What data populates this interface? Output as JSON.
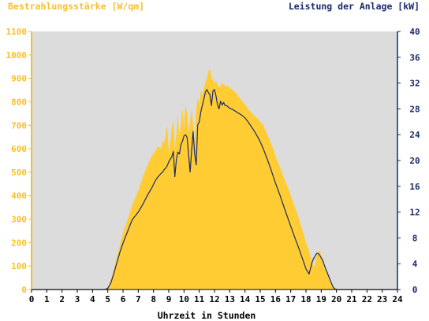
{
  "chart_data": {
    "type": "area",
    "left_axis_title": "Bestrahlungsstärke [W/qm]",
    "right_axis_title": "Leistung der Anlage [kW]",
    "xlabel": "Uhrzeit in Stunden",
    "x_ticks": [
      "0",
      "1",
      "2",
      "3",
      "4",
      "5",
      "6",
      "7",
      "8",
      "9",
      "10",
      "11",
      "12",
      "13",
      "14",
      "15",
      "16",
      "17",
      "18",
      "19",
      "20",
      "21",
      "22",
      "23",
      "24"
    ],
    "y_left_ticks": [
      "0",
      "100",
      "200",
      "300",
      "400",
      "500",
      "600",
      "700",
      "800",
      "900",
      "1000",
      "1100"
    ],
    "y_right_ticks": [
      "0",
      "4",
      "8",
      "12",
      "16",
      "20",
      "24",
      "28",
      "32",
      "36",
      "40"
    ],
    "xlim": [
      0,
      24
    ],
    "ylim_left": [
      0,
      1100
    ],
    "ylim_right": [
      0,
      40
    ],
    "grid": false,
    "colors": {
      "plot_background": "#dcdcdc",
      "irradiance_fill": "#ffcc33",
      "power_line": "#1a2a6c",
      "left_axis": "#f5c030",
      "right_axis": "#1a2a6c",
      "axis_labels": "#000000"
    },
    "series": [
      {
        "name": "Bestrahlungsstärke [W/qm]",
        "axis": "left",
        "style": "area",
        "x": [
          0,
          4.8,
          5.0,
          5.2,
          5.4,
          5.6,
          5.8,
          6.0,
          6.3,
          6.6,
          7.0,
          7.3,
          7.6,
          7.9,
          8.1,
          8.3,
          8.5,
          8.6,
          8.7,
          8.8,
          8.9,
          9.0,
          9.1,
          9.2,
          9.3,
          9.4,
          9.5,
          9.6,
          9.7,
          9.8,
          9.9,
          10.0,
          10.1,
          10.2,
          10.3,
          10.4,
          10.5,
          10.6,
          10.7,
          10.8,
          10.9,
          11.0,
          11.1,
          11.2,
          11.3,
          11.4,
          11.5,
          11.6,
          11.7,
          11.8,
          11.9,
          12.0,
          12.1,
          12.2,
          12.3,
          12.4,
          12.5,
          12.6,
          12.7,
          12.8,
          12.9,
          13.0,
          13.2,
          13.4,
          13.6,
          13.8,
          14.0,
          14.2,
          14.4,
          14.6,
          14.8,
          15.0,
          15.2,
          15.4,
          15.6,
          15.8,
          16.0,
          16.3,
          16.6,
          16.9,
          17.2,
          17.5,
          17.8,
          18.0,
          18.2,
          18.4,
          18.5,
          18.6,
          18.7,
          18.8,
          18.9,
          19.0,
          19.1,
          19.2,
          19.3,
          19.4,
          19.5,
          19.6,
          19.7,
          19.8,
          19.9,
          20.0,
          20.2,
          24
        ],
        "values": [
          0,
          0,
          10,
          40,
          90,
          140,
          190,
          240,
          300,
          360,
          420,
          480,
          530,
          570,
          590,
          610,
          600,
          640,
          620,
          660,
          700,
          580,
          630,
          690,
          720,
          600,
          660,
          750,
          650,
          700,
          770,
          690,
          790,
          750,
          670,
          720,
          770,
          700,
          620,
          760,
          820,
          790,
          850,
          830,
          860,
          880,
          900,
          930,
          940,
          910,
          890,
          880,
          890,
          870,
          860,
          870,
          880,
          875,
          870,
          865,
          870,
          860,
          850,
          840,
          820,
          805,
          790,
          770,
          755,
          740,
          730,
          715,
          700,
          670,
          640,
          610,
          570,
          520,
          470,
          420,
          365,
          310,
          245,
          200,
          165,
          120,
          95,
          110,
          150,
          165,
          160,
          150,
          130,
          110,
          90,
          70,
          50,
          30,
          20,
          10,
          5,
          2,
          0,
          0
        ]
      },
      {
        "name": "Leistung der Anlage [kW]",
        "axis": "right",
        "style": "line",
        "x": [
          0,
          4.8,
          5.0,
          5.2,
          5.4,
          5.6,
          5.8,
          6.0,
          6.3,
          6.6,
          7.0,
          7.3,
          7.6,
          7.9,
          8.1,
          8.3,
          8.5,
          8.6,
          8.7,
          8.8,
          8.9,
          9.0,
          9.1,
          9.2,
          9.3,
          9.4,
          9.5,
          9.6,
          9.7,
          9.8,
          9.9,
          10.0,
          10.1,
          10.2,
          10.3,
          10.4,
          10.5,
          10.6,
          10.7,
          10.8,
          10.9,
          11.0,
          11.1,
          11.2,
          11.3,
          11.4,
          11.5,
          11.6,
          11.7,
          11.8,
          11.9,
          12.0,
          12.1,
          12.2,
          12.3,
          12.4,
          12.5,
          12.6,
          12.7,
          12.8,
          12.9,
          13.0,
          13.2,
          13.4,
          13.6,
          13.8,
          14.0,
          14.2,
          14.4,
          14.6,
          14.8,
          15.0,
          15.2,
          15.4,
          15.6,
          15.8,
          16.0,
          16.3,
          16.6,
          16.9,
          17.2,
          17.5,
          17.8,
          18.0,
          18.2,
          18.4,
          18.5,
          18.6,
          18.7,
          18.8,
          18.9,
          19.0,
          19.1,
          19.2,
          19.3,
          19.4,
          19.5,
          19.6,
          19.7,
          19.8,
          19.9,
          20.0,
          20.2,
          24
        ],
        "values": [
          0,
          0,
          0.2,
          1.0,
          2.5,
          4.2,
          5.8,
          7.2,
          9.0,
          10.8,
          12.0,
          13.2,
          14.6,
          15.8,
          16.8,
          17.5,
          18.0,
          18.2,
          18.6,
          18.8,
          19.2,
          19.8,
          20.2,
          20.6,
          21.4,
          17.5,
          20.2,
          21.3,
          21.0,
          22.5,
          23.0,
          23.8,
          24.0,
          23.6,
          21.0,
          18.2,
          21.5,
          24.5,
          21.0,
          19.3,
          25.5,
          26.0,
          27.5,
          28.5,
          29.5,
          30.6,
          31.0,
          30.5,
          30.2,
          28.5,
          30.8,
          31.0,
          30.0,
          28.6,
          28.0,
          29.2,
          28.6,
          29.0,
          28.5,
          28.5,
          28.3,
          28.1,
          27.9,
          27.6,
          27.3,
          27.0,
          26.6,
          26.0,
          25.3,
          24.6,
          23.8,
          22.9,
          21.8,
          20.6,
          19.3,
          17.9,
          16.5,
          14.6,
          12.5,
          10.5,
          8.5,
          6.6,
          4.6,
          3.2,
          2.4,
          4.2,
          4.8,
          5.2,
          5.6,
          5.6,
          5.3,
          4.9,
          4.5,
          3.8,
          3.2,
          2.6,
          2.0,
          1.4,
          0.8,
          0.3,
          0.1,
          0,
          0,
          0
        ]
      }
    ]
  }
}
